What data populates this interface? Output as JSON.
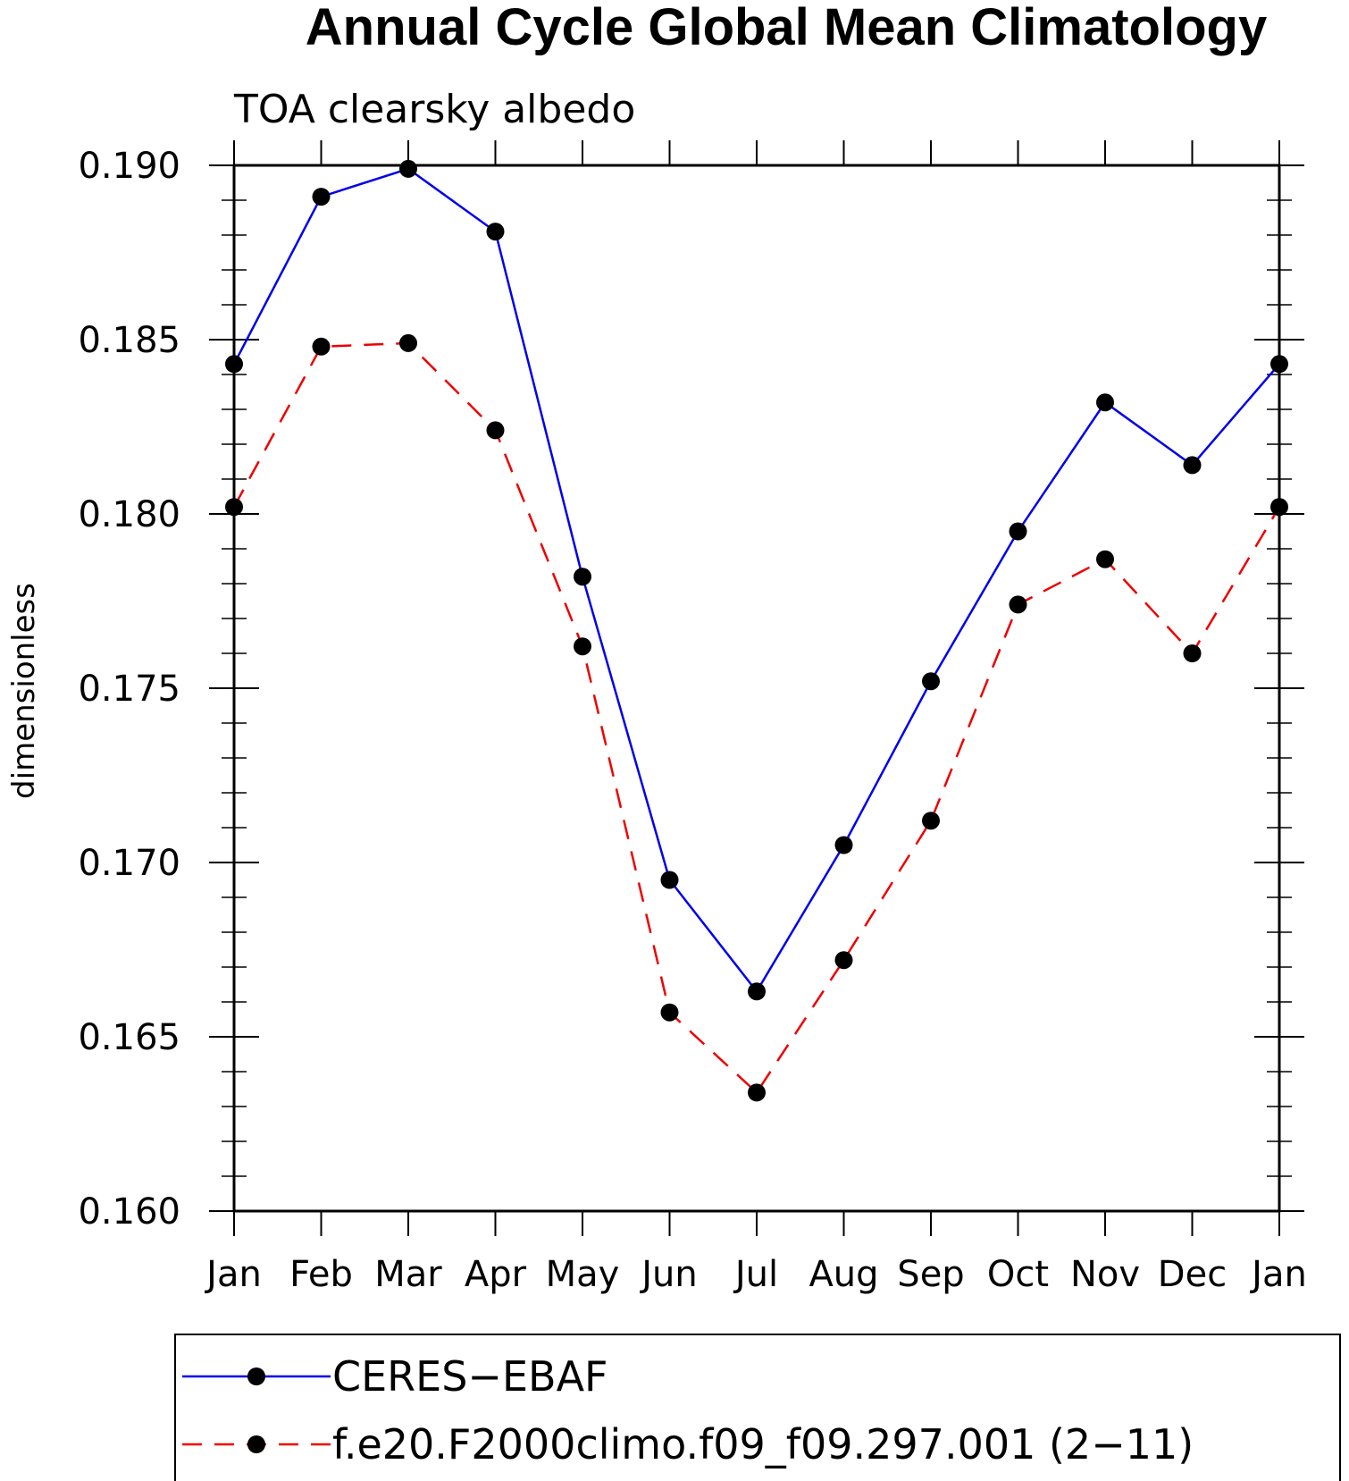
{
  "chart_data": {
    "type": "line",
    "title": "Annual Cycle Global Mean Climatology",
    "subtitle": "TOA clearsky albedo",
    "xlabel": "",
    "ylabel": "dimensionless",
    "categories": [
      "Jan",
      "Feb",
      "Mar",
      "Apr",
      "May",
      "Jun",
      "Jul",
      "Aug",
      "Sep",
      "Oct",
      "Nov",
      "Dec",
      "Jan"
    ],
    "yticks": [
      "0.160",
      "0.165",
      "0.170",
      "0.175",
      "0.180",
      "0.185",
      "0.190"
    ],
    "ylim": [
      0.16,
      0.19
    ],
    "grid": false,
    "legend_position": "bottom",
    "series": [
      {
        "name": "CERES−EBAF",
        "color": "#0000ee",
        "line_style": "solid",
        "marker": "filled-circle",
        "values": [
          0.1843,
          0.1891,
          0.1899,
          0.1881,
          0.1782,
          0.1695,
          0.1663,
          0.1705,
          0.1752,
          0.1795,
          0.1832,
          0.1814,
          0.1843
        ]
      },
      {
        "name": "f.e20.F2000climo.f09_f09.297.001 (2−11)",
        "color": "#ee0000",
        "line_style": "dashed",
        "marker": "filled-circle",
        "values": [
          0.1802,
          0.1848,
          0.1849,
          0.1824,
          0.1762,
          0.1657,
          0.1634,
          0.1672,
          0.1712,
          0.1774,
          0.1787,
          0.176,
          0.1802
        ]
      }
    ]
  }
}
